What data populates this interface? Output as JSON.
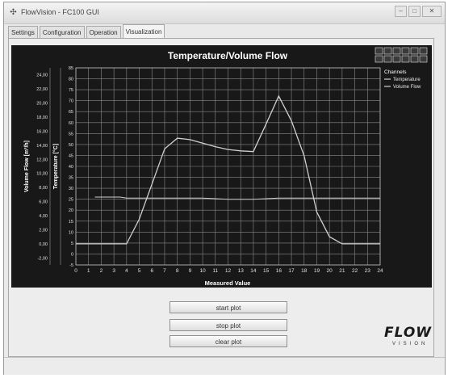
{
  "window": {
    "title": "FlowVision - FC100 GUI"
  },
  "tabs": [
    {
      "label": "Settings"
    },
    {
      "label": "Configuration"
    },
    {
      "label": "Operation"
    },
    {
      "label": "Visualization"
    }
  ],
  "buttons": {
    "start": "start plot",
    "stop": "stop plot",
    "clear": "clear plot"
  },
  "logo": {
    "main": "FLOW",
    "sub": "VISION"
  },
  "colors": {
    "plot_background": "#181818",
    "trace": "#d0d0d0",
    "grid": "#8a8a8a"
  },
  "chart_data": {
    "type": "line",
    "title": "Temperature/Volume Flow",
    "xlabel": "Measured Value",
    "ylabel_left": "Volume Flow [m³/h]",
    "ylabel_right": "Temperature [°C]",
    "xlim": [
      0,
      24
    ],
    "x_ticks": [
      "0",
      "1",
      "2",
      "3",
      "4",
      "5",
      "6",
      "7",
      "8",
      "9",
      "10",
      "11",
      "12",
      "13",
      "14",
      "15",
      "16",
      "17",
      "18",
      "19",
      "20",
      "21",
      "22",
      "23",
      "24"
    ],
    "ylim_flow": [
      -3,
      25
    ],
    "flow_ticks": [
      "24,00",
      "22,00",
      "20,00",
      "18,00",
      "16,00",
      "14,00",
      "12,00",
      "10,00",
      "8,00",
      "6,00",
      "4,00",
      "2,00",
      "0,00",
      "-2,00"
    ],
    "ylim_temp": [
      -5,
      85
    ],
    "temp_ticks": [
      "85",
      "80",
      "75",
      "70",
      "65",
      "60",
      "55",
      "50",
      "45",
      "40",
      "35",
      "30",
      "25",
      "20",
      "15",
      "10",
      "5",
      "0",
      "-5"
    ],
    "legend": {
      "title": "Channels",
      "placement": "top-right"
    },
    "grid": true,
    "series": [
      {
        "name": "Temperature",
        "axis": "right",
        "x": [
          1.5,
          3.5,
          4,
          10,
          12,
          14,
          16,
          18,
          21,
          24
        ],
        "values": [
          26,
          26,
          25.5,
          25.5,
          25,
          25,
          25.5,
          25.5,
          25.5,
          25.5
        ]
      },
      {
        "name": "Volume Flow",
        "axis": "left",
        "x": [
          0,
          1,
          2,
          3,
          4,
          5,
          6,
          7,
          8,
          9,
          10,
          11,
          12,
          13,
          14,
          15,
          16,
          17,
          18,
          19,
          20,
          21,
          22,
          23,
          24
        ],
        "values": [
          0,
          0,
          0,
          0,
          0,
          3.5,
          8.5,
          13.5,
          15,
          14.8,
          14.3,
          13.8,
          13.4,
          13.2,
          13.1,
          17,
          21,
          17.5,
          12.5,
          4.5,
          1,
          0,
          0,
          0,
          0
        ]
      }
    ]
  }
}
